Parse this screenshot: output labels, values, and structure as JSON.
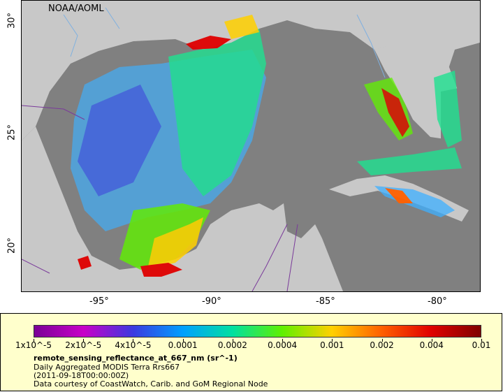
{
  "map": {
    "credit": "NOAA/AOML",
    "y_ticks": [
      "30°",
      "25°",
      "20°"
    ],
    "x_ticks": [
      "-95°",
      "-90°",
      "-85°",
      "-80°"
    ],
    "colors": {
      "land": "#c8c8c8",
      "ocean_nodata": "#808080",
      "frame": "#000000"
    }
  },
  "legend": {
    "colorbar_labels": [
      "1x10^-5",
      "2x10^-5",
      "4x10^-5",
      "0.0001",
      "0.0002",
      "0.0004",
      "0.001",
      "0.002",
      "0.004",
      "0.01"
    ],
    "colorbar_stops": [
      "#7a0096",
      "#c800c8",
      "#3a3ae0",
      "#00a0ff",
      "#00e0a0",
      "#60f000",
      "#ffd000",
      "#ff6000",
      "#e00000",
      "#800000"
    ],
    "variable": "remote_sensing_reflectance_at_667_nm (sr^-1)",
    "dataset": "Daily Aggregated MODIS Terra Rrs667",
    "time": "(2011-09-18T00:00:00Z)",
    "courtesy": "Data courtesy of CoastWatch, Carib. and GoM Regional Node"
  }
}
